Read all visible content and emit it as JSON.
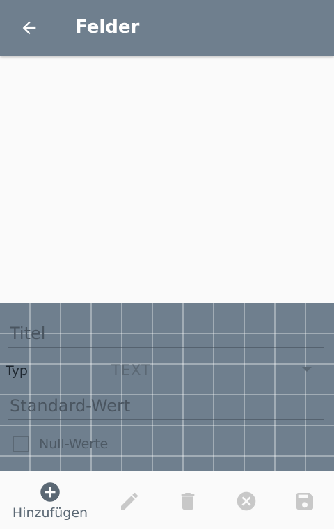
{
  "appbar": {
    "title": "Felder",
    "back_icon": "arrow-back-icon",
    "background": "#6f7f8e"
  },
  "editor": {
    "title_placeholder": "Titel",
    "type_label": "Typ",
    "type_value": "TEXT",
    "default_placeholder": "Standard-Wert",
    "null_label": "Null-Werte",
    "null_checked": false
  },
  "toolbar": {
    "add_label": "Hinzufügen",
    "add_icon": "add-circle-icon",
    "edit_icon": "edit-pencil-icon",
    "delete_icon": "delete-trash-icon",
    "cancel_icon": "cancel-circle-icon",
    "save_icon": "save-floppy-icon"
  }
}
